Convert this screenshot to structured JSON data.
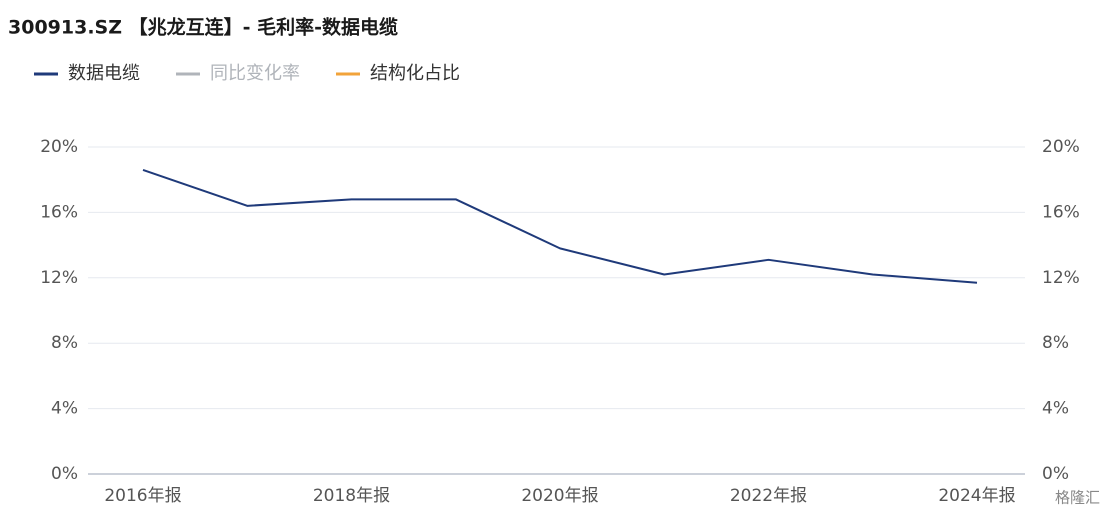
{
  "chart_data": {
    "type": "line",
    "title": "300913.SZ 【兆龙互连】- 毛利率-数据电缆",
    "categories": [
      "2016年报",
      null,
      "2018年报",
      null,
      "2020年报",
      null,
      "2022年报",
      null,
      "2024年报"
    ],
    "series": [
      {
        "name": "数据电缆",
        "color": "#1f3a7a",
        "values": [
          18.6,
          16.4,
          16.8,
          16.8,
          13.8,
          12.2,
          13.1,
          12.2,
          11.7
        ]
      },
      {
        "name": "同比变化率",
        "color": "#b0b4ba",
        "axis": "y2",
        "values": [
          null,
          null,
          null,
          null,
          null,
          null,
          null,
          null,
          null
        ]
      },
      {
        "name": "结构化占比",
        "color": "#f2a33a",
        "values": [
          null,
          null,
          null,
          null,
          null,
          null,
          null,
          null,
          null
        ]
      }
    ],
    "ylim": [
      0,
      20
    ],
    "yticks": [
      {
        "value": 0,
        "label": "0%"
      },
      {
        "value": 4,
        "label": "4%"
      },
      {
        "value": 8,
        "label": "8%"
      },
      {
        "value": 12,
        "label": "12%"
      },
      {
        "value": 16,
        "label": "16%"
      },
      {
        "value": 20,
        "label": "20%"
      }
    ],
    "y2lim": [
      0,
      20
    ],
    "y2ticks": [
      {
        "value": 0,
        "label": "0%"
      },
      {
        "value": 4,
        "label": "4%"
      },
      {
        "value": 8,
        "label": "8%"
      },
      {
        "value": 12,
        "label": "12%"
      },
      {
        "value": 16,
        "label": "16%"
      },
      {
        "value": 20,
        "label": "20%"
      }
    ],
    "grid": true,
    "legend": "top-left",
    "watermark": "格隆汇"
  }
}
